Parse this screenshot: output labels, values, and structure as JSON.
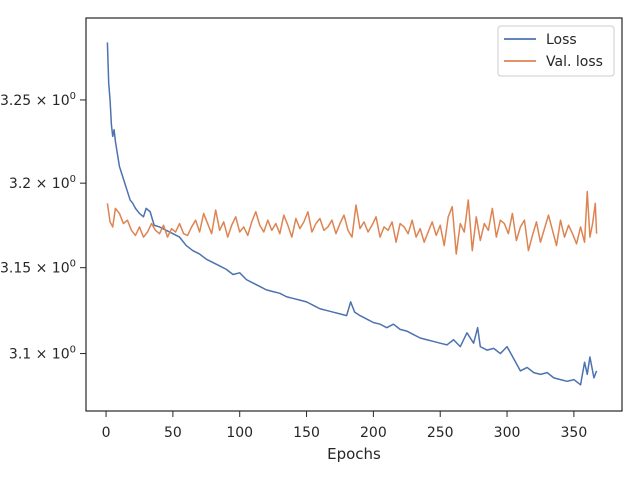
{
  "chart_data": {
    "type": "line",
    "title": "",
    "xlabel": "Epochs",
    "ylabel": "",
    "y_scale": "log",
    "xlim": [
      -15,
      386
    ],
    "ylim": [
      3.067,
      3.3
    ],
    "x_ticks": [
      0,
      50,
      100,
      150,
      200,
      250,
      300,
      350
    ],
    "x_tick_labels": [
      "0",
      "50",
      "100",
      "150",
      "200",
      "250",
      "300",
      "350"
    ],
    "y_ticks": [
      3.1,
      3.15,
      3.2,
      3.25
    ],
    "y_tick_labels": [
      "3.1",
      "3.15",
      "3.2",
      "3.25"
    ],
    "y_tick_label_suffix": {
      "times": "×",
      "base": "10",
      "exponent": "0"
    },
    "grid": false,
    "legend": "top-right",
    "series": [
      {
        "name": "Loss",
        "color": "#4c72b0",
        "x": [
          1,
          2,
          3,
          4,
          5,
          6,
          7,
          8,
          10,
          12,
          14,
          16,
          18,
          20,
          22,
          25,
          28,
          30,
          33,
          36,
          40,
          45,
          50,
          55,
          60,
          65,
          70,
          75,
          80,
          85,
          90,
          95,
          100,
          105,
          110,
          115,
          120,
          125,
          130,
          135,
          140,
          145,
          150,
          155,
          160,
          165,
          170,
          175,
          180,
          183,
          186,
          190,
          195,
          200,
          205,
          210,
          215,
          220,
          225,
          230,
          235,
          240,
          245,
          250,
          255,
          260,
          265,
          270,
          275,
          278,
          280,
          285,
          290,
          295,
          300,
          305,
          310,
          315,
          320,
          325,
          330,
          335,
          340,
          345,
          350,
          355,
          358,
          360,
          362,
          365,
          367
        ],
        "y": [
          3.285,
          3.26,
          3.25,
          3.235,
          3.228,
          3.232,
          3.225,
          3.22,
          3.21,
          3.205,
          3.2,
          3.195,
          3.19,
          3.188,
          3.185,
          3.182,
          3.18,
          3.185,
          3.183,
          3.175,
          3.174,
          3.172,
          3.17,
          3.168,
          3.163,
          3.16,
          3.158,
          3.155,
          3.153,
          3.151,
          3.149,
          3.146,
          3.147,
          3.143,
          3.141,
          3.139,
          3.137,
          3.136,
          3.135,
          3.133,
          3.132,
          3.131,
          3.13,
          3.128,
          3.126,
          3.125,
          3.124,
          3.123,
          3.122,
          3.13,
          3.124,
          3.122,
          3.12,
          3.118,
          3.117,
          3.115,
          3.117,
          3.114,
          3.113,
          3.111,
          3.109,
          3.108,
          3.107,
          3.106,
          3.105,
          3.108,
          3.104,
          3.112,
          3.106,
          3.115,
          3.104,
          3.102,
          3.103,
          3.1,
          3.104,
          3.097,
          3.09,
          3.092,
          3.089,
          3.088,
          3.089,
          3.086,
          3.085,
          3.084,
          3.085,
          3.082,
          3.095,
          3.088,
          3.098,
          3.086,
          3.09
        ]
      },
      {
        "name": "Val. loss",
        "color": "#dd8452",
        "x": [
          1,
          3,
          5,
          7,
          10,
          13,
          16,
          19,
          22,
          25,
          28,
          31,
          34,
          37,
          40,
          43,
          46,
          49,
          52,
          55,
          58,
          61,
          64,
          67,
          70,
          73,
          76,
          79,
          82,
          85,
          88,
          91,
          94,
          97,
          100,
          103,
          106,
          109,
          112,
          115,
          118,
          121,
          124,
          127,
          130,
          133,
          136,
          139,
          142,
          145,
          148,
          151,
          154,
          157,
          160,
          163,
          166,
          169,
          172,
          175,
          178,
          181,
          184,
          187,
          190,
          193,
          196,
          199,
          202,
          205,
          208,
          211,
          214,
          217,
          220,
          223,
          226,
          229,
          232,
          235,
          238,
          241,
          244,
          247,
          250,
          253,
          256,
          259,
          262,
          265,
          268,
          271,
          274,
          277,
          280,
          283,
          286,
          289,
          292,
          295,
          298,
          301,
          304,
          307,
          310,
          313,
          316,
          319,
          322,
          325,
          328,
          331,
          334,
          337,
          340,
          343,
          346,
          349,
          352,
          355,
          358,
          360,
          362,
          364,
          366,
          367
        ],
        "y": [
          3.188,
          3.177,
          3.174,
          3.185,
          3.182,
          3.176,
          3.178,
          3.172,
          3.169,
          3.174,
          3.168,
          3.171,
          3.176,
          3.172,
          3.17,
          3.175,
          3.168,
          3.173,
          3.171,
          3.176,
          3.17,
          3.169,
          3.174,
          3.178,
          3.171,
          3.182,
          3.176,
          3.17,
          3.184,
          3.172,
          3.177,
          3.168,
          3.175,
          3.18,
          3.171,
          3.174,
          3.169,
          3.177,
          3.183,
          3.175,
          3.171,
          3.178,
          3.172,
          3.176,
          3.17,
          3.181,
          3.175,
          3.168,
          3.179,
          3.173,
          3.177,
          3.183,
          3.171,
          3.176,
          3.179,
          3.172,
          3.174,
          3.178,
          3.17,
          3.176,
          3.181,
          3.172,
          3.168,
          3.187,
          3.173,
          3.177,
          3.171,
          3.175,
          3.18,
          3.168,
          3.174,
          3.172,
          3.177,
          3.165,
          3.176,
          3.174,
          3.17,
          3.178,
          3.168,
          3.173,
          3.165,
          3.171,
          3.177,
          3.169,
          3.175,
          3.163,
          3.18,
          3.186,
          3.158,
          3.176,
          3.171,
          3.19,
          3.16,
          3.18,
          3.166,
          3.176,
          3.172,
          3.185,
          3.168,
          3.178,
          3.176,
          3.17,
          3.182,
          3.166,
          3.174,
          3.178,
          3.16,
          3.169,
          3.177,
          3.165,
          3.173,
          3.181,
          3.172,
          3.163,
          3.178,
          3.168,
          3.175,
          3.17,
          3.164,
          3.174,
          3.165,
          3.195,
          3.168,
          3.176,
          3.188,
          3.17
        ]
      }
    ]
  }
}
